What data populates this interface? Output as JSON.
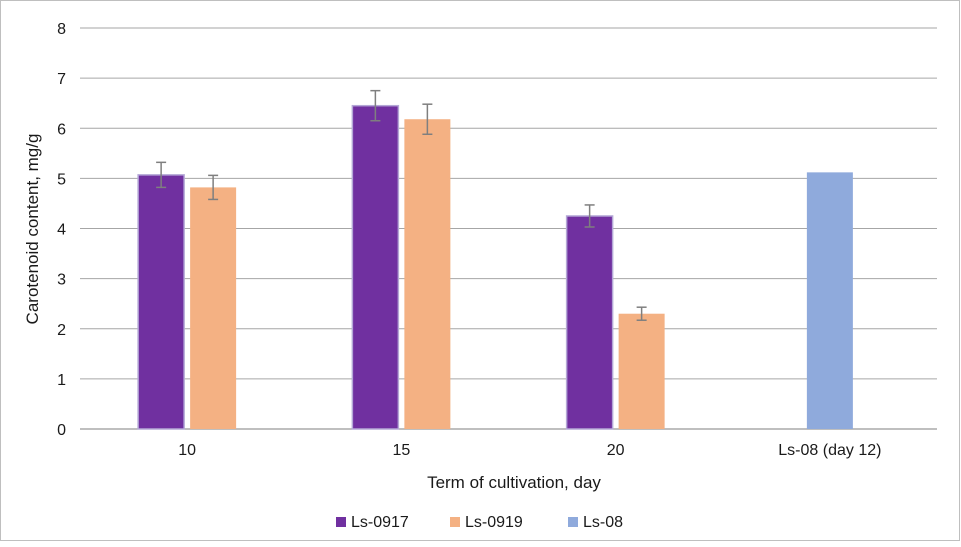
{
  "chart_data": {
    "type": "bar",
    "categories": [
      "10",
      "15",
      "20",
      "Ls-08 (day 12)"
    ],
    "series": [
      {
        "name": "Ls-0917",
        "color": "#7030a0",
        "values": [
          5.07,
          6.45,
          4.25,
          null
        ],
        "errors": [
          0.25,
          0.3,
          0.22,
          null
        ]
      },
      {
        "name": "Ls-0919",
        "color": "#f4b183",
        "values": [
          4.82,
          6.18,
          2.3,
          null
        ],
        "errors": [
          0.24,
          0.3,
          0.13,
          null
        ]
      },
      {
        "name": "Ls-08",
        "color": "#8faadc",
        "values": [
          null,
          null,
          null,
          5.12
        ],
        "errors": [
          null,
          null,
          null,
          null
        ]
      }
    ],
    "xlabel": "Term of cultivation, day",
    "ylabel": "Carotenoid content, mg/g",
    "ylim": [
      0,
      8
    ],
    "yticks": [
      "0",
      "1",
      "2",
      "3",
      "4",
      "5",
      "6",
      "7",
      "8"
    ],
    "grid": true,
    "legend_position": "bottom"
  }
}
